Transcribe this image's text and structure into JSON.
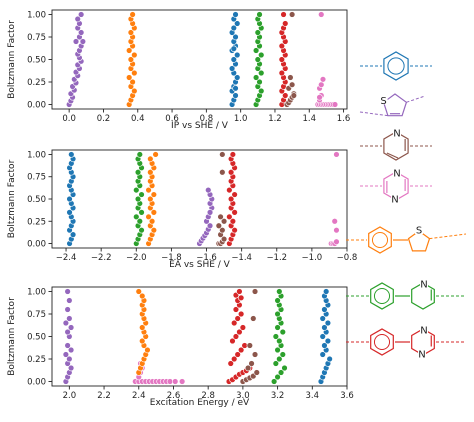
{
  "chart_data": [
    {
      "type": "scatter",
      "title": "",
      "xlabel": "IP vs SHE / V",
      "ylabel": "Boltzmann Factor",
      "xlim": [
        -0.1,
        1.62
      ],
      "ylim": [
        1.05,
        -0.05
      ],
      "xticks": [
        "0.0",
        "0.2",
        "0.4",
        "0.6",
        "0.8",
        "1.0",
        "1.2",
        "1.4",
        "1.6"
      ],
      "yticks": [
        "0.00",
        "0.25",
        "0.50",
        "0.75",
        "1.00"
      ],
      "grid": false,
      "series": [
        {
          "color": "#9467bd",
          "x": [
            0.0,
            0.01,
            0.02,
            0.01,
            0.03,
            0.02,
            0.04,
            0.03,
            0.05,
            0.04,
            0.06,
            0.05,
            0.07,
            0.06,
            0.05,
            0.06,
            0.07,
            0.08,
            0.06,
            0.07,
            0.05,
            0.06,
            0.04,
            0.05,
            0.07
          ],
          "y": [
            0.0,
            0.04,
            0.08,
            0.12,
            0.16,
            0.2,
            0.24,
            0.28,
            0.32,
            0.36,
            0.4,
            0.44,
            0.48,
            0.52,
            0.56,
            0.6,
            0.65,
            0.7,
            0.75,
            0.8,
            0.85,
            0.9,
            0.7,
            0.95,
            1.0
          ]
        },
        {
          "color": "#ff7f0e",
          "x": [
            0.35,
            0.36,
            0.37,
            0.38,
            0.36,
            0.37,
            0.35,
            0.38,
            0.36,
            0.37,
            0.36,
            0.38,
            0.35,
            0.37,
            0.36,
            0.37,
            0.36,
            0.38,
            0.37,
            0.36,
            0.37
          ],
          "y": [
            0.0,
            0.05,
            0.1,
            0.15,
            0.2,
            0.25,
            0.3,
            0.35,
            0.4,
            0.45,
            0.5,
            0.55,
            0.6,
            0.65,
            0.7,
            0.75,
            0.8,
            0.85,
            0.9,
            0.95,
            1.0
          ]
        },
        {
          "color": "#1f77b4",
          "x": [
            0.95,
            0.96,
            0.97,
            0.95,
            0.96,
            0.97,
            0.98,
            0.96,
            0.95,
            0.97,
            0.96,
            0.98,
            0.95,
            0.97,
            0.96,
            0.97,
            0.95,
            0.96,
            0.98,
            0.96,
            0.97,
            0.96,
            0.97
          ],
          "y": [
            0.0,
            0.05,
            0.1,
            0.15,
            0.2,
            0.25,
            0.3,
            0.35,
            0.4,
            0.45,
            0.5,
            0.55,
            0.6,
            0.65,
            0.7,
            0.75,
            0.8,
            0.85,
            0.9,
            0.95,
            0.18,
            0.62,
            1.0
          ]
        },
        {
          "color": "#2ca02c",
          "x": [
            1.09,
            1.1,
            1.11,
            1.12,
            1.1,
            1.11,
            1.09,
            1.12,
            1.1,
            1.11,
            1.1,
            1.12,
            1.09,
            1.11,
            1.1,
            1.11,
            1.1,
            1.12,
            1.11,
            1.1,
            1.11
          ],
          "y": [
            0.0,
            0.05,
            0.1,
            0.15,
            0.2,
            0.25,
            0.3,
            0.35,
            0.4,
            0.45,
            0.5,
            0.55,
            0.6,
            0.65,
            0.7,
            0.75,
            0.8,
            0.85,
            0.9,
            0.95,
            1.0
          ]
        },
        {
          "color": "#d62728",
          "x": [
            1.24,
            1.25,
            1.26,
            1.24,
            1.25,
            1.26,
            1.25,
            1.24,
            1.26,
            1.25,
            1.24,
            1.26,
            1.25,
            1.24,
            1.26,
            1.25,
            1.24,
            1.25,
            1.26,
            1.25
          ],
          "y": [
            0.0,
            0.05,
            0.1,
            0.15,
            0.2,
            0.25,
            0.3,
            0.35,
            0.4,
            0.45,
            0.5,
            0.55,
            0.6,
            0.65,
            0.7,
            0.75,
            0.8,
            0.85,
            0.9,
            1.0
          ]
        },
        {
          "color": "#8c564b",
          "x": [
            1.27,
            1.28,
            1.29,
            1.3,
            1.31,
            1.28,
            1.3,
            1.29,
            1.31,
            1.3
          ],
          "y": [
            0.0,
            0.02,
            0.05,
            0.08,
            0.12,
            0.18,
            0.22,
            0.3,
            0.1,
            1.0
          ]
        },
        {
          "color": "#e377c2",
          "x": [
            1.45,
            1.46,
            1.47,
            1.48,
            1.49,
            1.5,
            1.51,
            1.52,
            1.53,
            1.54,
            1.55,
            1.46,
            1.47,
            1.46,
            1.47,
            1.48,
            1.46,
            1.47
          ],
          "y": [
            0.0,
            0.0,
            0.0,
            0.0,
            0.0,
            0.0,
            0.0,
            0.0,
            0.0,
            0.0,
            0.0,
            0.05,
            0.1,
            0.18,
            0.22,
            0.28,
            0.08,
            1.0
          ]
        }
      ]
    },
    {
      "type": "scatter",
      "title": "",
      "xlabel": "EA vs SHE / V",
      "ylabel": "Boltzmann Factor",
      "xlim": [
        -2.48,
        -0.8
      ],
      "ylim": [
        1.05,
        -0.05
      ],
      "xticks": [
        "−2.4",
        "−2.2",
        "−2.0",
        "−1.8",
        "−1.6",
        "−1.4",
        "−1.2",
        "−1.0",
        "−0.8"
      ],
      "yticks": [
        "0.00",
        "0.25",
        "0.50",
        "0.75",
        "1.00"
      ],
      "grid": false,
      "series": [
        {
          "color": "#1f77b4",
          "x": [
            -2.38,
            -2.37,
            -2.36,
            -2.38,
            -2.37,
            -2.36,
            -2.37,
            -2.38,
            -2.36,
            -2.37,
            -2.38,
            -2.36,
            -2.37,
            -2.38,
            -2.37,
            -2.36,
            -2.37,
            -2.38,
            -2.37,
            -2.36,
            -2.37
          ],
          "y": [
            0.0,
            0.05,
            0.1,
            0.15,
            0.2,
            0.25,
            0.3,
            0.35,
            0.4,
            0.45,
            0.5,
            0.55,
            0.6,
            0.65,
            0.7,
            0.75,
            0.8,
            0.85,
            0.9,
            0.95,
            1.0
          ]
        },
        {
          "color": "#2ca02c",
          "x": [
            -2.0,
            -1.99,
            -1.98,
            -1.97,
            -1.99,
            -1.98,
            -2.0,
            -1.97,
            -1.99,
            -1.98,
            -1.99,
            -1.97,
            -2.0,
            -1.98,
            -1.99,
            -1.98,
            -1.99,
            -1.97,
            -1.98,
            -1.99,
            -1.98
          ],
          "y": [
            0.0,
            0.05,
            0.1,
            0.15,
            0.2,
            0.25,
            0.3,
            0.35,
            0.4,
            0.45,
            0.5,
            0.55,
            0.6,
            0.65,
            0.7,
            0.75,
            0.8,
            0.85,
            0.9,
            0.95,
            1.0
          ]
        },
        {
          "color": "#ff7f0e",
          "x": [
            -1.93,
            -1.92,
            -1.91,
            -1.9,
            -1.92,
            -1.91,
            -1.93,
            -1.9,
            -1.92,
            -1.91,
            -1.92,
            -1.9,
            -1.93,
            -1.91,
            -1.92,
            -1.91,
            -1.92,
            -1.9,
            -1.91,
            -1.92,
            -1.89
          ],
          "y": [
            0.0,
            0.05,
            0.1,
            0.15,
            0.2,
            0.25,
            0.3,
            0.35,
            0.4,
            0.45,
            0.5,
            0.55,
            0.6,
            0.65,
            0.7,
            0.75,
            0.8,
            0.85,
            0.9,
            0.95,
            1.0
          ]
        },
        {
          "color": "#9467bd",
          "x": [
            -1.64,
            -1.63,
            -1.62,
            -1.61,
            -1.6,
            -1.59,
            -1.58,
            -1.6,
            -1.59,
            -1.58,
            -1.57,
            -1.58,
            -1.57,
            -1.58,
            -1.59,
            -1.58
          ],
          "y": [
            0.0,
            0.03,
            0.06,
            0.09,
            0.12,
            0.16,
            0.2,
            0.25,
            0.3,
            0.35,
            0.4,
            0.45,
            0.5,
            0.55,
            0.6,
            0.35
          ]
        },
        {
          "color": "#8c564b",
          "x": [
            -1.53,
            -1.52,
            -1.51,
            -1.5,
            -1.52,
            -1.51,
            -1.53,
            -1.5,
            -1.52,
            -1.51,
            -1.51
          ],
          "y": [
            0.0,
            0.0,
            0.02,
            0.05,
            0.1,
            0.15,
            0.2,
            0.25,
            0.3,
            0.8,
            1.0
          ]
        },
        {
          "color": "#d62728",
          "x": [
            -1.47,
            -1.46,
            -1.45,
            -1.44,
            -1.46,
            -1.45,
            -1.47,
            -1.44,
            -1.46,
            -1.45,
            -1.46,
            -1.44,
            -1.47,
            -1.45,
            -1.46,
            -1.45,
            -1.46,
            -1.44,
            -1.45,
            -1.46,
            -1.45
          ],
          "y": [
            0.0,
            0.05,
            0.1,
            0.15,
            0.2,
            0.25,
            0.3,
            0.35,
            0.4,
            0.45,
            0.5,
            0.55,
            0.6,
            0.65,
            0.7,
            0.75,
            0.8,
            0.85,
            0.9,
            0.95,
            1.0
          ]
        },
        {
          "color": "#e377c2",
          "x": [
            -0.89,
            -0.88,
            -0.87,
            -0.86,
            -0.86,
            -0.87,
            -0.86
          ],
          "y": [
            0.0,
            0.0,
            0.0,
            0.02,
            0.15,
            0.25,
            1.0
          ]
        }
      ]
    },
    {
      "type": "scatter",
      "title": "",
      "xlabel": "Excitation Energy / eV",
      "ylabel": "Boltzmann Factor",
      "xlim": [
        1.9,
        3.6
      ],
      "ylim": [
        1.05,
        -0.05
      ],
      "xticks": [
        "2.0",
        "2.2",
        "2.4",
        "2.6",
        "2.8",
        "3.0",
        "3.2",
        "3.4",
        "3.6"
      ],
      "yticks": [
        "0.00",
        "0.25",
        "0.50",
        "0.75",
        "1.00"
      ],
      "grid": false,
      "series": [
        {
          "color": "#9467bd",
          "x": [
            1.98,
            1.99,
            2.0,
            2.01,
            1.99,
            2.0,
            1.98,
            2.01,
            1.99,
            2.0,
            1.99,
            2.01,
            1.98,
            2.0,
            1.99,
            2.0,
            1.99
          ],
          "y": [
            0.0,
            0.05,
            0.1,
            0.15,
            0.2,
            0.25,
            0.3,
            0.35,
            0.4,
            0.5,
            0.55,
            0.6,
            0.65,
            0.7,
            0.8,
            0.9,
            1.0
          ]
        },
        {
          "color": "#e377c2",
          "x": [
            2.38,
            2.4,
            2.42,
            2.44,
            2.46,
            2.48,
            2.5,
            2.52,
            2.54,
            2.56,
            2.58,
            2.61,
            2.65,
            2.4,
            2.41,
            2.42,
            2.41
          ],
          "y": [
            0.0,
            0.0,
            0.0,
            0.0,
            0.0,
            0.0,
            0.0,
            0.0,
            0.0,
            0.0,
            0.0,
            0.0,
            0.0,
            0.05,
            0.1,
            0.15,
            0.2
          ]
        },
        {
          "color": "#ff7f0e",
          "x": [
            2.4,
            2.41,
            2.42,
            2.43,
            2.44,
            2.45,
            2.43,
            2.42,
            2.44,
            2.43,
            2.42,
            2.44,
            2.43,
            2.42,
            2.43,
            2.42,
            2.43,
            2.42,
            2.4
          ],
          "y": [
            0.1,
            0.15,
            0.2,
            0.25,
            0.3,
            0.35,
            0.4,
            0.45,
            0.5,
            0.55,
            0.6,
            0.65,
            0.7,
            0.75,
            0.8,
            0.85,
            0.9,
            0.95,
            1.0
          ]
        },
        {
          "color": "#d62728",
          "x": [
            2.92,
            2.94,
            2.96,
            2.98,
            3.0,
            3.02,
            3.04,
            2.93,
            2.95,
            2.97,
            2.99,
            3.01,
            2.94,
            2.96,
            2.98,
            3.0,
            2.95,
            2.97,
            2.99,
            2.96,
            2.98,
            2.97,
            2.99,
            2.96,
            2.98
          ],
          "y": [
            0.0,
            0.02,
            0.05,
            0.08,
            0.1,
            0.12,
            0.15,
            0.2,
            0.25,
            0.3,
            0.35,
            0.4,
            0.45,
            0.5,
            0.55,
            0.6,
            0.65,
            0.7,
            0.75,
            0.8,
            0.85,
            0.9,
            0.93,
            0.96,
            1.0
          ]
        },
        {
          "color": "#8c564b",
          "x": [
            3.0,
            3.02,
            3.04,
            3.06,
            3.08,
            3.03,
            3.05,
            3.07,
            3.04,
            3.06,
            3.07
          ],
          "y": [
            0.0,
            0.02,
            0.04,
            0.06,
            0.1,
            0.15,
            0.2,
            0.3,
            0.4,
            0.7,
            1.0
          ]
        },
        {
          "color": "#2ca02c",
          "x": [
            3.18,
            3.2,
            3.22,
            3.24,
            3.19,
            3.21,
            3.23,
            3.2,
            3.22,
            3.21,
            3.19,
            3.23,
            3.2,
            3.22,
            3.21,
            3.2,
            3.22,
            3.21,
            3.2,
            3.22,
            3.21
          ],
          "y": [
            0.0,
            0.05,
            0.1,
            0.15,
            0.2,
            0.25,
            0.3,
            0.35,
            0.4,
            0.45,
            0.5,
            0.55,
            0.6,
            0.65,
            0.7,
            0.75,
            0.8,
            0.85,
            0.9,
            0.95,
            1.0
          ]
        },
        {
          "color": "#1f77b4",
          "x": [
            3.45,
            3.46,
            3.47,
            3.48,
            3.49,
            3.5,
            3.46,
            3.48,
            3.47,
            3.49,
            3.46,
            3.48,
            3.47,
            3.49,
            3.46,
            3.48,
            3.47,
            3.49,
            3.48,
            3.47,
            3.48
          ],
          "y": [
            0.0,
            0.05,
            0.1,
            0.15,
            0.2,
            0.25,
            0.3,
            0.35,
            0.4,
            0.45,
            0.5,
            0.55,
            0.6,
            0.65,
            0.7,
            0.75,
            0.8,
            0.85,
            0.9,
            0.95,
            1.0
          ]
        }
      ]
    }
  ],
  "legend_molecules": [
    {
      "icon": "benzene-icon",
      "color": "#1f77b4"
    },
    {
      "icon": "thiophene-icon",
      "color": "#9467bd"
    },
    {
      "icon": "pyridine-icon",
      "color": "#8c564b",
      "atom_labels": [
        "N"
      ]
    },
    {
      "icon": "pyrazine-icon",
      "color": "#e377c2",
      "atom_labels": [
        "N",
        "N"
      ]
    },
    {
      "icon": "phenylthiophene-icon",
      "color": "#ff7f0e",
      "atom_labels": [
        "S"
      ]
    },
    {
      "icon": "phenylpyridine-icon",
      "color": "#2ca02c",
      "atom_labels": [
        "N"
      ]
    },
    {
      "icon": "phenylpyrazine-icon",
      "color": "#d62728",
      "atom_labels": [
        "N",
        "N"
      ]
    }
  ],
  "thiophene_label": "S",
  "point_edge_color": "#ffffff",
  "text_color": "#222222"
}
